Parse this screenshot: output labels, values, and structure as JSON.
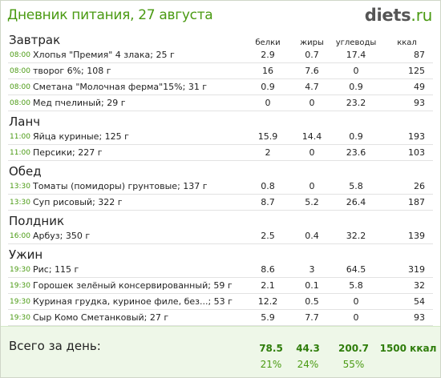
{
  "header": {
    "title": "Дневник питания, 27 августа",
    "logo_main": "diets",
    "logo_dot": ".",
    "logo_tld": "ru"
  },
  "columns": {
    "protein": "белки",
    "fat": "жиры",
    "carbs": "углеводы",
    "kcal": "ккал"
  },
  "meals": [
    {
      "name": "Завтрак",
      "items": [
        {
          "time": "08:00",
          "name": "Хлопья \"Премия\" 4 злака; 25 г",
          "protein": "2.9",
          "fat": "0.7",
          "carbs": "17.4",
          "kcal": "87"
        },
        {
          "time": "08:00",
          "name": "творог 6%; 108 г",
          "protein": "16",
          "fat": "7.6",
          "carbs": "0",
          "kcal": "125"
        },
        {
          "time": "08:00",
          "name": "Сметана \"Молочная ферма\"15%; 31 г",
          "protein": "0.9",
          "fat": "4.7",
          "carbs": "0.9",
          "kcal": "49"
        },
        {
          "time": "08:00",
          "name": "Мед пчелиный; 29 г",
          "protein": "0",
          "fat": "0",
          "carbs": "23.2",
          "kcal": "93"
        }
      ]
    },
    {
      "name": "Ланч",
      "items": [
        {
          "time": "11:00",
          "name": "Яйца куриные; 125 г",
          "protein": "15.9",
          "fat": "14.4",
          "carbs": "0.9",
          "kcal": "193"
        },
        {
          "time": "11:00",
          "name": "Персики; 227 г",
          "protein": "2",
          "fat": "0",
          "carbs": "23.6",
          "kcal": "103"
        }
      ]
    },
    {
      "name": "Обед",
      "items": [
        {
          "time": "13:30",
          "name": "Томаты (помидоры) грунтовые; 137 г",
          "protein": "0.8",
          "fat": "0",
          "carbs": "5.8",
          "kcal": "26"
        },
        {
          "time": "13:30",
          "name": "Суп рисовый; 322 г",
          "protein": "8.7",
          "fat": "5.2",
          "carbs": "26.4",
          "kcal": "187"
        }
      ]
    },
    {
      "name": "Полдник",
      "items": [
        {
          "time": "16:00",
          "name": "Арбуз; 350 г",
          "protein": "2.5",
          "fat": "0.4",
          "carbs": "32.2",
          "kcal": "139"
        }
      ]
    },
    {
      "name": "Ужин",
      "items": [
        {
          "time": "19:30",
          "name": "Рис; 115 г",
          "protein": "8.6",
          "fat": "3",
          "carbs": "64.5",
          "kcal": "319"
        },
        {
          "time": "19:30",
          "name": "Горошек зелёный консервированный; 59 г",
          "protein": "2.1",
          "fat": "0.1",
          "carbs": "5.8",
          "kcal": "32"
        },
        {
          "time": "19:30",
          "name": "Куриная грудка, куриное филе, без...; 53 г",
          "protein": "12.2",
          "fat": "0.5",
          "carbs": "0",
          "kcal": "54"
        },
        {
          "time": "19:30",
          "name": "Сыр Комо Сметанковый; 27 г",
          "protein": "5.9",
          "fat": "7.7",
          "carbs": "0",
          "kcal": "93"
        }
      ]
    }
  ],
  "total": {
    "label": "Всего за день:",
    "protein": "78.5",
    "fat": "44.3",
    "carbs": "200.7",
    "kcal": "1500 ккал",
    "protein_pct": "21%",
    "fat_pct": "24%",
    "carbs_pct": "55%"
  },
  "colors": {
    "accent": "#4a9a12",
    "total_bg": "#eef7e8",
    "total_value": "#2f7d0b"
  }
}
